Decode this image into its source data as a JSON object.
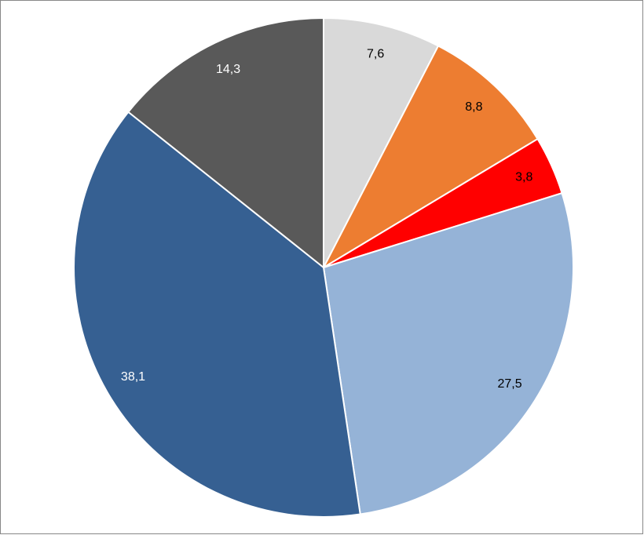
{
  "chart_data": {
    "type": "pie",
    "values": [
      7.6,
      8.8,
      3.8,
      27.5,
      38.1,
      14.3
    ],
    "value_labels": [
      "7,6",
      "8,8",
      "3,8",
      "27,5",
      "38,1",
      "14,3"
    ],
    "colors": [
      "#d9d9d9",
      "#ed7d31",
      "#ff0000",
      "#95b3d7",
      "#366092",
      "#595959"
    ],
    "label_colors": [
      "#000000",
      "#000000",
      "#000000",
      "#000000",
      "#ffffff",
      "#ffffff"
    ]
  }
}
